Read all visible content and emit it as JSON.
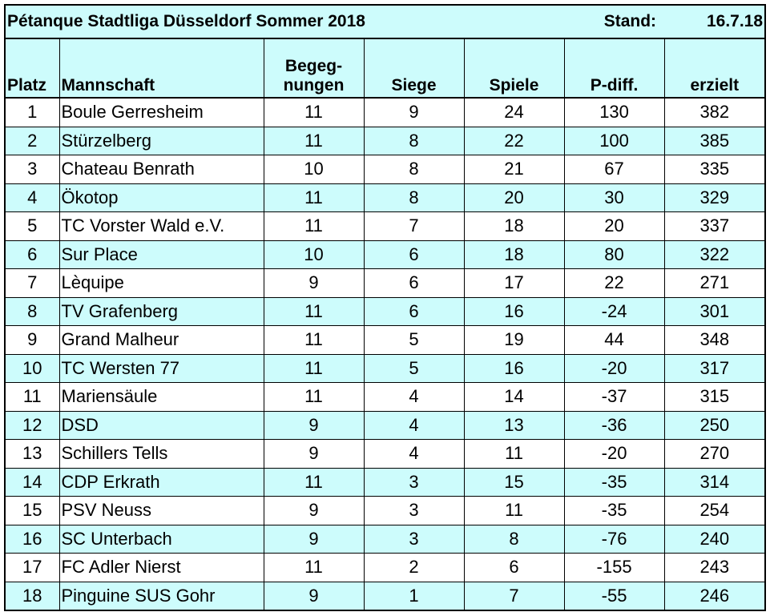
{
  "title": {
    "league": "Pétanque Stadtliga Düsseldorf Sommer 2018",
    "stand_label": "Stand:",
    "stand_date": "16.7.18"
  },
  "columns": {
    "platz": "Platz",
    "mannschaft": "Mannschaft",
    "begegnungen_line1": "Begeg-",
    "begegnungen_line2": "nungen",
    "siege": "Siege",
    "spiele": "Spiele",
    "pdiff": "P-diff.",
    "erzielt": "erzielt"
  },
  "colors": {
    "row_shade": "#cdfcfc",
    "row_plain": "#ffffff",
    "border": "#000000"
  },
  "rows": [
    {
      "platz": "1",
      "team": "Boule Gerresheim",
      "begegnungen": "11",
      "siege": "9",
      "spiele": "24",
      "pdiff": "130",
      "erzielt": "382"
    },
    {
      "platz": "2",
      "team": "Stürzelberg",
      "begegnungen": "11",
      "siege": "8",
      "spiele": "22",
      "pdiff": "100",
      "erzielt": "385"
    },
    {
      "platz": "3",
      "team": "Chateau Benrath",
      "begegnungen": "10",
      "siege": "8",
      "spiele": "21",
      "pdiff": "67",
      "erzielt": "335"
    },
    {
      "platz": "4",
      "team": "Ökotop",
      "begegnungen": "11",
      "siege": "8",
      "spiele": "20",
      "pdiff": "30",
      "erzielt": "329"
    },
    {
      "platz": "5",
      "team": "TC Vorster Wald e.V.",
      "begegnungen": "11",
      "siege": "7",
      "spiele": "18",
      "pdiff": "20",
      "erzielt": "337"
    },
    {
      "platz": "6",
      "team": "Sur Place",
      "begegnungen": "10",
      "siege": "6",
      "spiele": "18",
      "pdiff": "80",
      "erzielt": "322"
    },
    {
      "platz": "7",
      "team": "Lèquipe",
      "begegnungen": "9",
      "siege": "6",
      "spiele": "17",
      "pdiff": "22",
      "erzielt": "271"
    },
    {
      "platz": "8",
      "team": "TV Grafenberg",
      "begegnungen": "11",
      "siege": "6",
      "spiele": "16",
      "pdiff": "-24",
      "erzielt": "301"
    },
    {
      "platz": "9",
      "team": "Grand Malheur",
      "begegnungen": "11",
      "siege": "5",
      "spiele": "19",
      "pdiff": "44",
      "erzielt": "348"
    },
    {
      "platz": "10",
      "team": "TC Wersten 77",
      "begegnungen": "11",
      "siege": "5",
      "spiele": "16",
      "pdiff": "-20",
      "erzielt": "317"
    },
    {
      "platz": "11",
      "team": "Mariensäule",
      "begegnungen": "11",
      "siege": "4",
      "spiele": "14",
      "pdiff": "-37",
      "erzielt": "315"
    },
    {
      "platz": "12",
      "team": "DSD",
      "begegnungen": "9",
      "siege": "4",
      "spiele": "13",
      "pdiff": "-36",
      "erzielt": "250"
    },
    {
      "platz": "13",
      "team": "Schillers Tells",
      "begegnungen": "9",
      "siege": "4",
      "spiele": "11",
      "pdiff": "-20",
      "erzielt": "270"
    },
    {
      "platz": "14",
      "team": "CDP Erkrath",
      "begegnungen": "11",
      "siege": "3",
      "spiele": "15",
      "pdiff": "-35",
      "erzielt": "314"
    },
    {
      "platz": "15",
      "team": "PSV Neuss",
      "begegnungen": "9",
      "siege": "3",
      "spiele": "11",
      "pdiff": "-35",
      "erzielt": "254"
    },
    {
      "platz": "16",
      "team": "SC Unterbach",
      "begegnungen": "9",
      "siege": "3",
      "spiele": "8",
      "pdiff": "-76",
      "erzielt": "240"
    },
    {
      "platz": "17",
      "team": "FC Adler Nierst",
      "begegnungen": "11",
      "siege": "2",
      "spiele": "6",
      "pdiff": "-155",
      "erzielt": "243"
    },
    {
      "platz": "18",
      "team": "Pinguine SUS Gohr",
      "begegnungen": "9",
      "siege": "1",
      "spiele": "7",
      "pdiff": "-55",
      "erzielt": "246"
    }
  ]
}
